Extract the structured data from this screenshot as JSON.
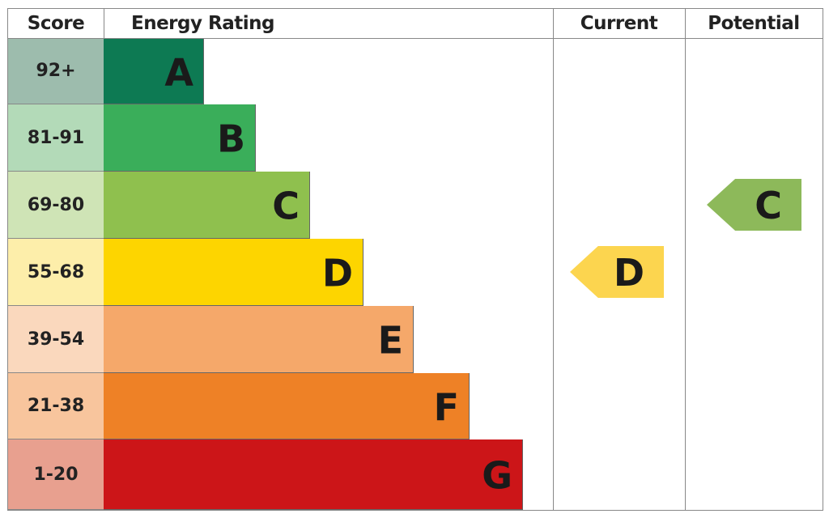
{
  "chart_data": {
    "type": "bar",
    "headers": {
      "score": "Score",
      "rating": "Energy Rating",
      "current": "Current",
      "potential": "Potential"
    },
    "bands": [
      {
        "letter": "A",
        "range": "92+",
        "color": "#0d7a53",
        "score_bg": "#9dbcad"
      },
      {
        "letter": "B",
        "range": "81-91",
        "color": "#3aae5a",
        "score_bg": "#b3dab8"
      },
      {
        "letter": "C",
        "range": "69-80",
        "color": "#8fc04e",
        "score_bg": "#cfe4b6"
      },
      {
        "letter": "D",
        "range": "55-68",
        "color": "#fdd500",
        "score_bg": "#fdeeaa"
      },
      {
        "letter": "E",
        "range": "39-54",
        "color": "#f5a86a",
        "score_bg": "#fad8bd"
      },
      {
        "letter": "F",
        "range": "21-38",
        "color": "#ee8126",
        "score_bg": "#f8c59d"
      },
      {
        "letter": "G",
        "range": "1-20",
        "color": "#cc1518",
        "score_bg": "#e8a08f"
      }
    ],
    "current": {
      "letter": "D",
      "color": "#fcd54f"
    },
    "potential": {
      "letter": "C",
      "color": "#8db95a"
    }
  }
}
